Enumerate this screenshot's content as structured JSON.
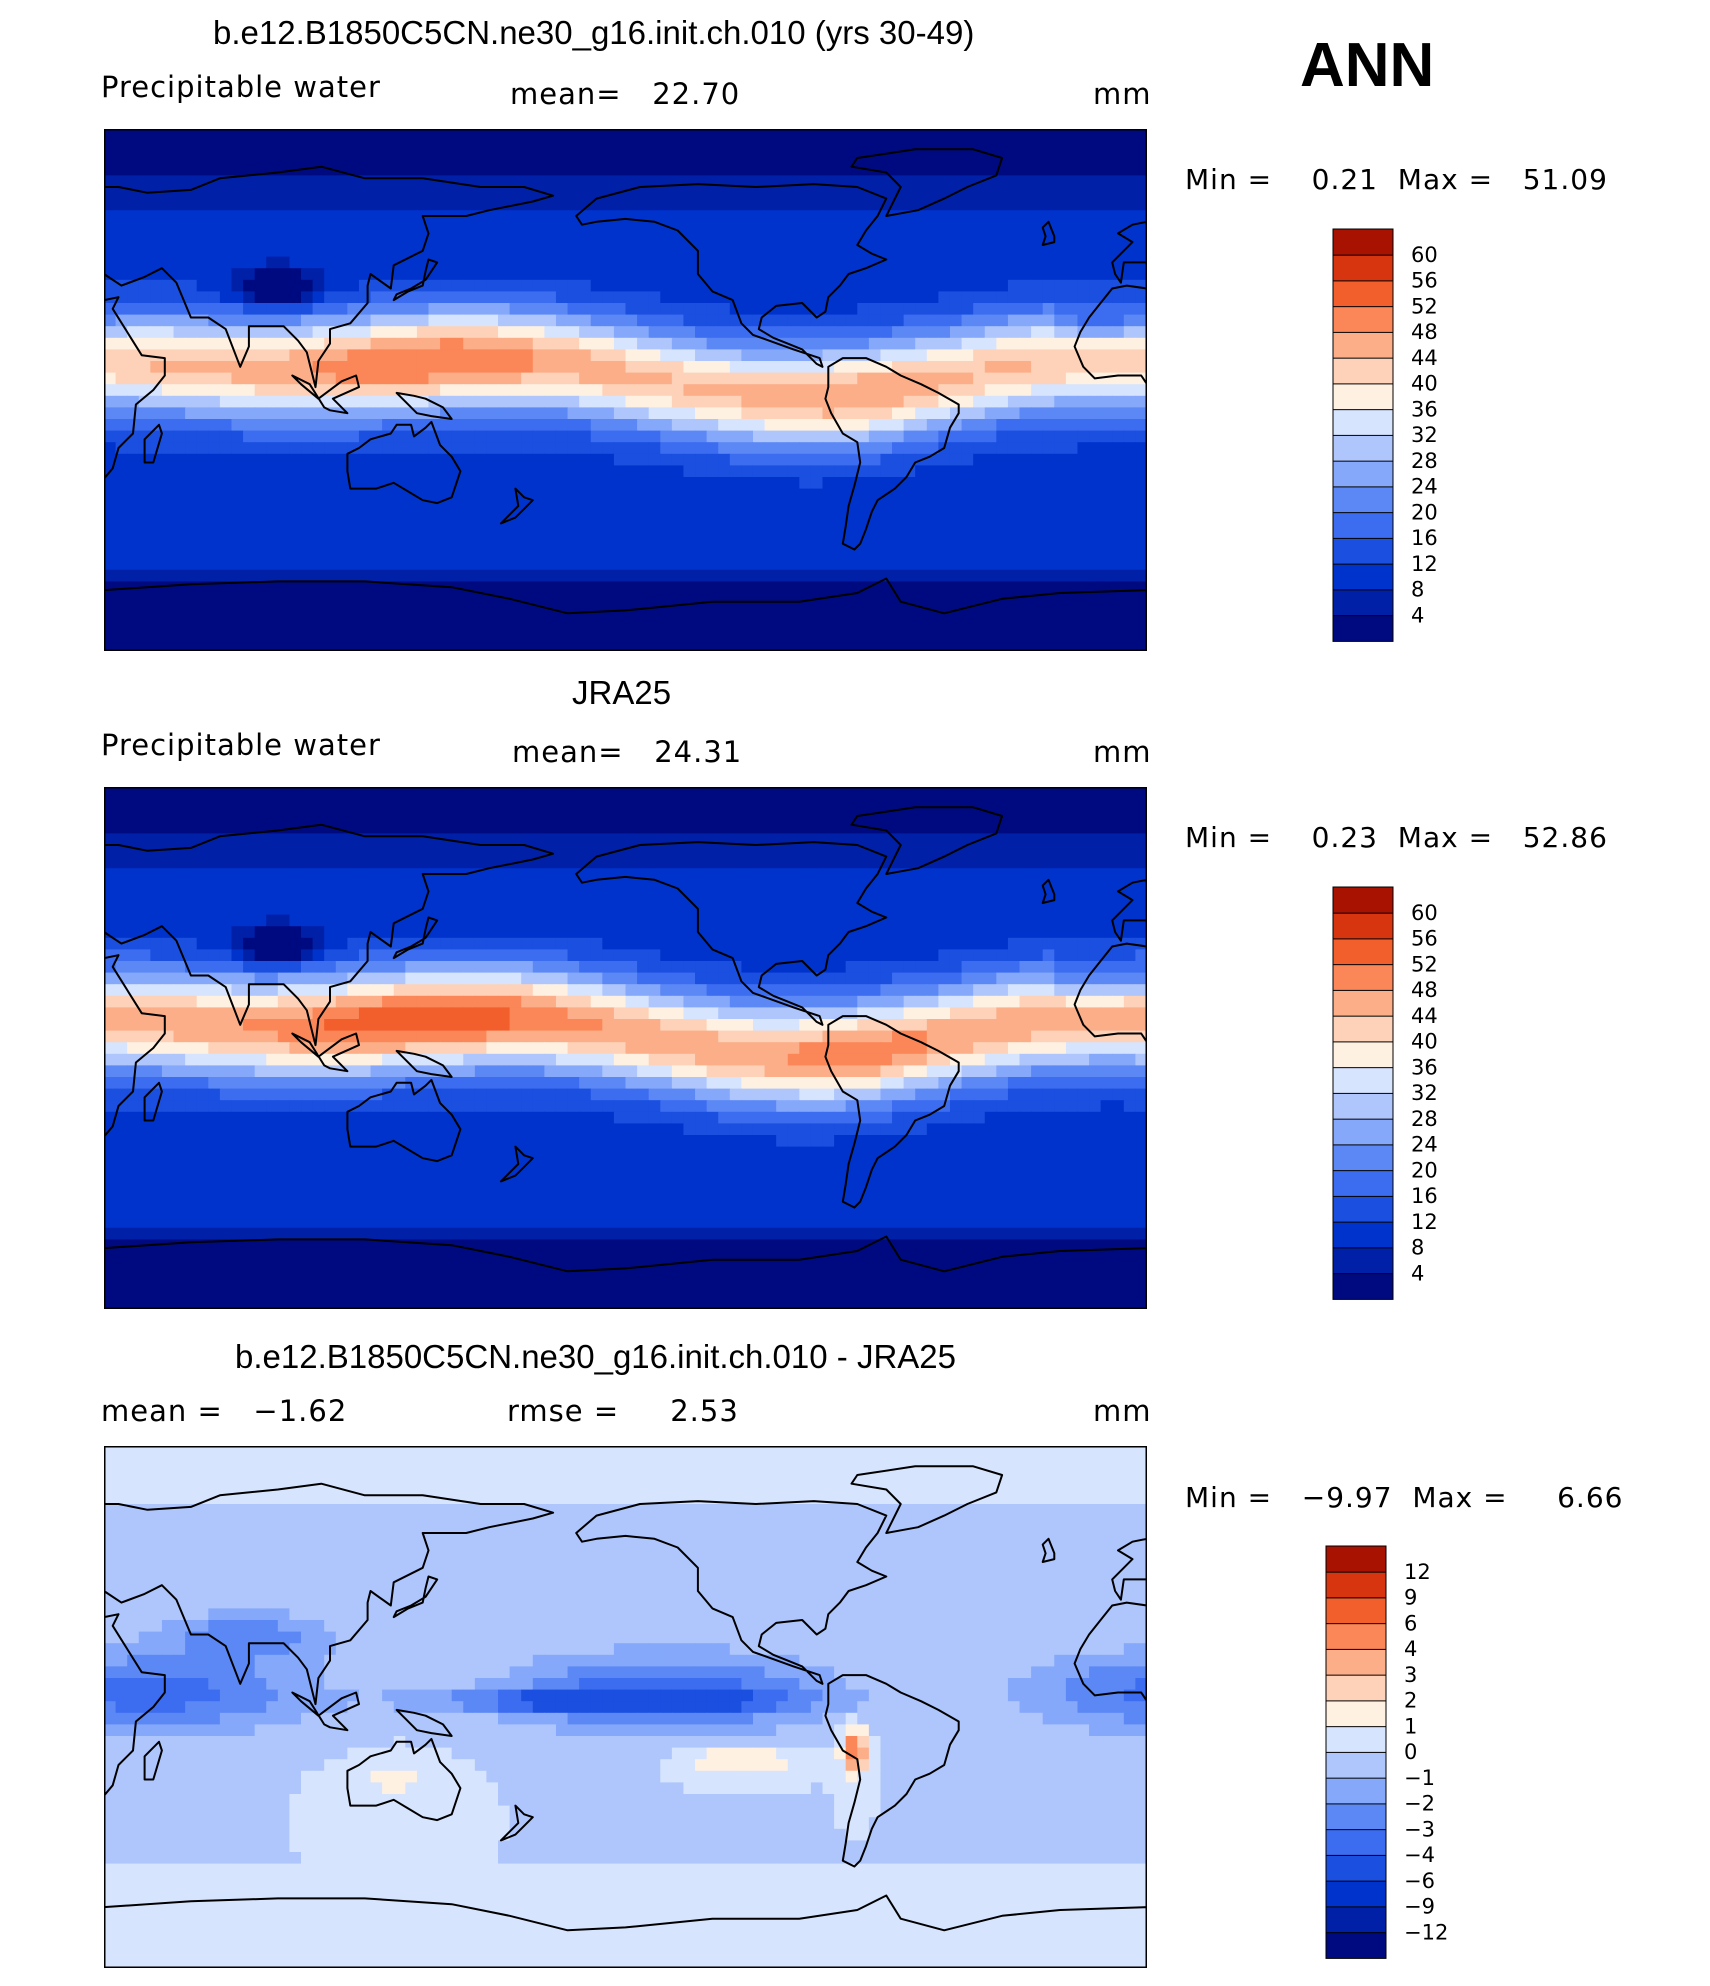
{
  "annotation": "ANN",
  "panels": [
    {
      "title": "b.e12.B1850C5CN.ne30_g16.init.ch.010 (yrs 30-49)",
      "left_label": "Precipitable water",
      "center_label": "mean=   22.70",
      "right_label": "mm",
      "min_max": "Min =    0.21  Max =   51.09"
    },
    {
      "title": "JRA25",
      "left_label": "Precipitable water",
      "center_label": "mean=   24.31",
      "right_label": "mm",
      "min_max": "Min =    0.23  Max =   52.86"
    },
    {
      "title": "b.e12.B1850C5CN.ne30_g16.init.ch.010 - JRA25",
      "left_label": "mean =   −1.62",
      "center_label": "rmse =     2.53",
      "right_label": "mm",
      "min_max": "Min =   −9.97  Max =     6.66"
    }
  ],
  "chart_data": [
    {
      "type": "heatmap",
      "title": "b.e12.B1850C5CN.ne30_g16.init.ch.010 (yrs 30-49)",
      "variable": "Precipitable water",
      "units": "mm",
      "mean": 22.7,
      "min": 0.21,
      "max": 51.09,
      "levels": [
        4,
        8,
        12,
        16,
        20,
        24,
        28,
        32,
        36,
        40,
        44,
        48,
        52,
        56,
        60
      ],
      "colors": [
        "#000a80",
        "#0020a8",
        "#0033cc",
        "#1a4fe0",
        "#3c6cf0",
        "#5b88f5",
        "#85a8fa",
        "#aec6fc",
        "#d6e4fd",
        "#fff1e2",
        "#fdd2b8",
        "#fcae88",
        "#fb8658",
        "#f25e2c",
        "#d63510",
        "#a81200"
      ],
      "mode": "field",
      "peak": 49
    },
    {
      "type": "heatmap",
      "title": "JRA25",
      "variable": "Precipitable water",
      "units": "mm",
      "mean": 24.31,
      "min": 0.23,
      "max": 52.86,
      "levels": [
        4,
        8,
        12,
        16,
        20,
        24,
        28,
        32,
        36,
        40,
        44,
        48,
        52,
        56,
        60
      ],
      "colors": [
        "#000a80",
        "#0020a8",
        "#0033cc",
        "#1a4fe0",
        "#3c6cf0",
        "#5b88f5",
        "#85a8fa",
        "#aec6fc",
        "#d6e4fd",
        "#fff1e2",
        "#fdd2b8",
        "#fcae88",
        "#fb8658",
        "#f25e2c",
        "#d63510",
        "#a81200"
      ],
      "mode": "field",
      "peak": 52
    },
    {
      "type": "heatmap",
      "title": "b.e12.B1850C5CN.ne30_g16.init.ch.010 - JRA25",
      "units": "mm",
      "mean": -1.62,
      "rmse": 2.53,
      "min": -9.97,
      "max": 6.66,
      "levels": [
        "−12",
        "−9",
        "−6",
        "−4",
        "−3",
        "−2",
        "−1",
        "0",
        "1",
        "2",
        "3",
        "4",
        "6",
        "9",
        "12"
      ],
      "level_values": [
        -12,
        -9,
        -6,
        -4,
        -3,
        -2,
        -1,
        0,
        1,
        2,
        3,
        4,
        6,
        9,
        12
      ],
      "colors": [
        "#000a80",
        "#0020a8",
        "#0033cc",
        "#1a4fe0",
        "#3c6cf0",
        "#5b88f5",
        "#85a8fa",
        "#aec6fc",
        "#d6e4fd",
        "#fff1e2",
        "#fdd2b8",
        "#fcae88",
        "#fb8658",
        "#f25e2c",
        "#d63510",
        "#a81200"
      ],
      "mode": "diff"
    }
  ]
}
